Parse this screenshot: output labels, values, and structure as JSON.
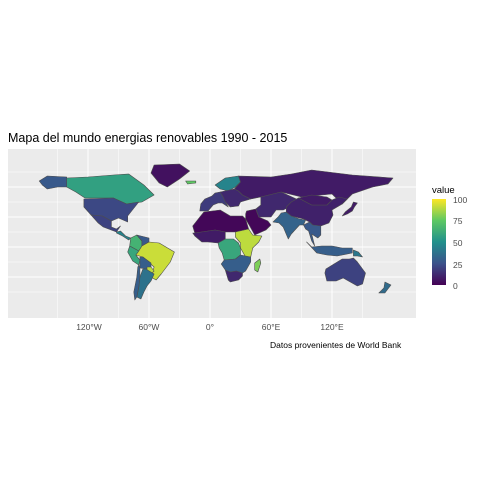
{
  "title": "Mapa del mundo energias renovables 1990 - 2015",
  "caption": "Datos provenientes de World Bank",
  "x_axis": {
    "ticks": [
      "120°W",
      "60°W",
      "0°",
      "60°E",
      "120°E"
    ],
    "tick_values": [
      -120,
      -60,
      0,
      60,
      120
    ]
  },
  "legend": {
    "title": "value",
    "labels": [
      "100",
      "75",
      "50",
      "25",
      "0"
    ],
    "values": [
      100,
      75,
      50,
      25,
      0
    ],
    "colors": [
      "#440154",
      "#3b528b",
      "#21908c",
      "#5dc863",
      "#fde725"
    ]
  },
  "colors": {
    "panel": "#ebebeb",
    "grid": "#ffffff",
    "border": "#4d4d4d"
  },
  "map_data": {
    "type": "choropleth",
    "regions": [
      {
        "name": "Canada",
        "value": 57
      },
      {
        "name": "Alaska",
        "value": 28
      },
      {
        "name": "Greenland",
        "value": 5
      },
      {
        "name": "United States",
        "value": 22
      },
      {
        "name": "Mexico",
        "value": 20
      },
      {
        "name": "Central America",
        "value": 45
      },
      {
        "name": "Colombia",
        "value": 65
      },
      {
        "name": "Venezuela",
        "value": 28
      },
      {
        "name": "Brazil",
        "value": 92
      },
      {
        "name": "Peru",
        "value": 60
      },
      {
        "name": "Bolivia",
        "value": 30
      },
      {
        "name": "Paraguay",
        "value": 90
      },
      {
        "name": "Argentina",
        "value": 38
      },
      {
        "name": "Chile",
        "value": 30
      },
      {
        "name": "Iceland",
        "value": 75
      },
      {
        "name": "Scandinavia",
        "value": 45
      },
      {
        "name": "Western Europe",
        "value": 18
      },
      {
        "name": "Eastern Europe",
        "value": 12
      },
      {
        "name": "Russia",
        "value": 8
      },
      {
        "name": "North Africa",
        "value": 2
      },
      {
        "name": "West Africa",
        "value": 8
      },
      {
        "name": "Central Africa",
        "value": 60
      },
      {
        "name": "East Africa",
        "value": 90
      },
      {
        "name": "Southern Africa",
        "value": 30
      },
      {
        "name": "South Africa",
        "value": 12
      },
      {
        "name": "Madagascar",
        "value": 80
      },
      {
        "name": "Middle East",
        "value": 2
      },
      {
        "name": "Central Asia",
        "value": 12
      },
      {
        "name": "India",
        "value": 32
      },
      {
        "name": "China",
        "value": 10
      },
      {
        "name": "Mongolia",
        "value": 8
      },
      {
        "name": "Southeast Asia",
        "value": 28
      },
      {
        "name": "Indonesia",
        "value": 30
      },
      {
        "name": "Japan",
        "value": 8
      },
      {
        "name": "Australia",
        "value": 20
      },
      {
        "name": "New Zealand",
        "value": 35
      },
      {
        "name": "Papua New Guinea",
        "value": 40
      }
    ]
  }
}
